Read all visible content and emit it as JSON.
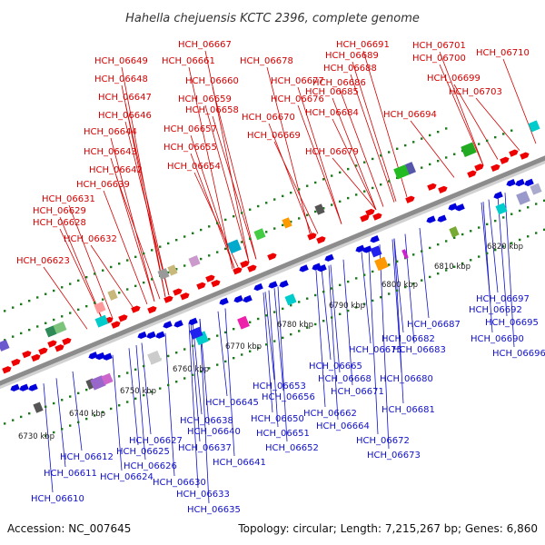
{
  "title": "Hahella chejuensis KCTC 2396, complete genome",
  "footer": {
    "accession": "Accession: NC_007645",
    "summary": "Topology: circular; Length: 7,215,267 bp; Genes: 6,860"
  },
  "colors": {
    "forward_label": "#d40000",
    "reverse_label": "#1010c8",
    "forward_gene": "#ee0000",
    "reverse_gene": "#0000dd",
    "backbone": "#8c8c8c",
    "tick": "#1a7a1a"
  },
  "tick_labels": [
    "6730 kbp",
    "6740 kbp",
    "6750 kbp",
    "6760 kbp",
    "6770 kbp",
    "6780 kbp",
    "6790 kbp",
    "6800 kbp",
    "6810 kbp",
    "6820 kbp"
  ],
  "forward_genes": [
    "HCH_06623",
    "HCH_06628",
    "HCH_06629",
    "HCH_06631",
    "HCH_06632",
    "HCH_06639",
    "HCH_06642",
    "HCH_06643",
    "HCH_06644",
    "HCH_06646",
    "HCH_06647",
    "HCH_06648",
    "HCH_06649",
    "HCH_06654",
    "HCH_06655",
    "HCH_06657",
    "HCH_06658",
    "HCH_06659",
    "HCH_06660",
    "HCH_06661",
    "HCH_06667",
    "HCH_06669",
    "HCH_06670",
    "HCH_06676",
    "HCH_06677",
    "HCH_06678",
    "HCH_06679",
    "HCH_06684",
    "HCH_06685",
    "HCH_06686",
    "HCH_06688",
    "HCH_06689",
    "HCH_06691",
    "HCH_06694",
    "HCH_06699",
    "HCH_06700",
    "HCH_06701",
    "HCH_06703",
    "HCH_06710"
  ],
  "reverse_genes": [
    "HCH_06610",
    "HCH_06611",
    "HCH_06612",
    "HCH_06624",
    "HCH_06625",
    "HCH_06626",
    "HCH_06627",
    "HCH_06630",
    "HCH_06633",
    "HCH_06635",
    "HCH_06637",
    "HCH_06638",
    "HCH_06640",
    "HCH_06641",
    "HCH_06645",
    "HCH_06650",
    "HCH_06651",
    "HCH_06652",
    "HCH_06653",
    "HCH_06656",
    "HCH_06662",
    "HCH_06664",
    "HCH_06665",
    "HCH_06668",
    "HCH_06671",
    "HCH_06672",
    "HCH_06673",
    "HCH_06675",
    "HCH_06680",
    "HCH_06681",
    "HCH_06682",
    "HCH_06683",
    "HCH_06687",
    "HCH_06690",
    "HCH_06692",
    "HCH_06695",
    "HCH_06696",
    "HCH_06697"
  ]
}
